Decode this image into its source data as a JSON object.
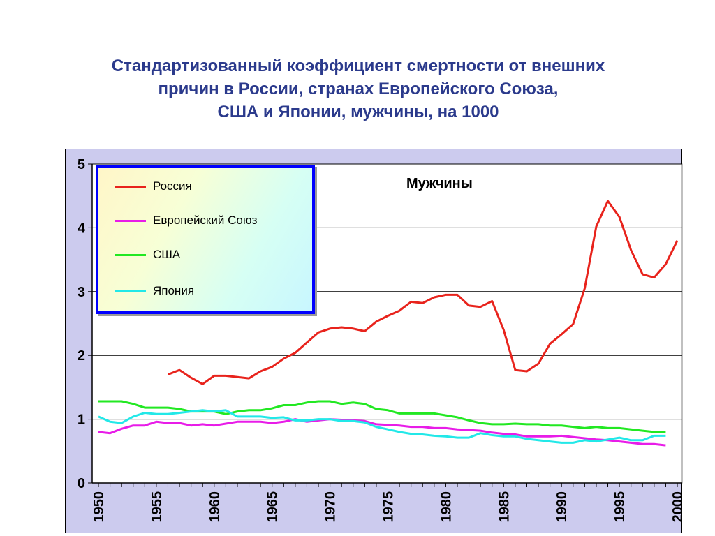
{
  "title_lines": [
    "Стандартизованный коэффициент смертности от внешних",
    "причин в России, странах Европейского Союза,",
    "США и Японии, мужчины, на 1000"
  ],
  "colors": {
    "title": "#2b3a8c",
    "plot_background": "#ffffff",
    "frame_background": "#cccbee",
    "legend_border": "#0000ff"
  },
  "chart_data": {
    "type": "line",
    "title": "Мужчины",
    "xlabel": "",
    "ylabel": "",
    "xlim": [
      1950,
      2000
    ],
    "ylim": [
      0,
      5
    ],
    "yticks": [
      "0",
      "1",
      "2",
      "3",
      "4",
      "5"
    ],
    "xticks": [
      "1950",
      "1955",
      "1960",
      "1965",
      "1970",
      "1975",
      "1980",
      "1985",
      "1990",
      "1995",
      "2000"
    ],
    "grid": "horizontal",
    "legend_position": "top-left",
    "series": [
      {
        "name": "Россия",
        "color": "#e8231c",
        "x": [
          1956,
          1957,
          1958,
          1959,
          1960,
          1961,
          1962,
          1963,
          1964,
          1965,
          1966,
          1967,
          1968,
          1969,
          1970,
          1971,
          1972,
          1973,
          1974,
          1975,
          1976,
          1977,
          1978,
          1979,
          1980,
          1981,
          1982,
          1983,
          1984,
          1985,
          1986,
          1987,
          1988,
          1989,
          1990,
          1991,
          1992,
          1993,
          1994,
          1995,
          1996,
          1997,
          1998,
          1999,
          2000
        ],
        "y": [
          1.7,
          1.77,
          1.65,
          1.55,
          1.68,
          1.68,
          1.66,
          1.64,
          1.75,
          1.82,
          1.95,
          2.04,
          2.2,
          2.36,
          2.42,
          2.44,
          2.42,
          2.38,
          2.53,
          2.62,
          2.7,
          2.84,
          2.82,
          2.91,
          2.95,
          2.95,
          2.78,
          2.76,
          2.85,
          2.4,
          1.77,
          1.75,
          1.87,
          2.18,
          2.33,
          2.49,
          3.05,
          4.02,
          4.42,
          4.17,
          3.65,
          3.27,
          3.22,
          3.43,
          3.8
        ]
      },
      {
        "name": "Европейский Союз",
        "color": "#e81ce8",
        "x": [
          1950,
          1951,
          1952,
          1953,
          1954,
          1955,
          1956,
          1957,
          1958,
          1959,
          1960,
          1961,
          1962,
          1963,
          1964,
          1965,
          1966,
          1967,
          1968,
          1969,
          1970,
          1971,
          1972,
          1973,
          1974,
          1975,
          1976,
          1977,
          1978,
          1979,
          1980,
          1981,
          1982,
          1983,
          1984,
          1985,
          1986,
          1987,
          1988,
          1989,
          1990,
          1991,
          1992,
          1993,
          1994,
          1995,
          1996,
          1997,
          1998,
          1999
        ],
        "y": [
          0.8,
          0.78,
          0.85,
          0.9,
          0.9,
          0.96,
          0.94,
          0.94,
          0.9,
          0.92,
          0.9,
          0.93,
          0.96,
          0.96,
          0.96,
          0.94,
          0.96,
          1.0,
          0.96,
          0.98,
          1.0,
          0.99,
          0.98,
          0.97,
          0.92,
          0.91,
          0.9,
          0.88,
          0.88,
          0.86,
          0.86,
          0.84,
          0.83,
          0.82,
          0.79,
          0.77,
          0.76,
          0.73,
          0.73,
          0.73,
          0.74,
          0.72,
          0.7,
          0.68,
          0.67,
          0.65,
          0.63,
          0.61,
          0.61,
          0.59
        ]
      },
      {
        "name": "США",
        "color": "#22e822",
        "x": [
          1950,
          1951,
          1952,
          1953,
          1954,
          1955,
          1956,
          1957,
          1958,
          1959,
          1960,
          1961,
          1962,
          1963,
          1964,
          1965,
          1966,
          1967,
          1968,
          1969,
          1970,
          1971,
          1972,
          1973,
          1974,
          1975,
          1976,
          1977,
          1978,
          1979,
          1980,
          1981,
          1982,
          1983,
          1984,
          1985,
          1986,
          1987,
          1988,
          1989,
          1990,
          1991,
          1992,
          1993,
          1994,
          1995,
          1996,
          1997,
          1998,
          1999
        ],
        "y": [
          1.28,
          1.28,
          1.28,
          1.24,
          1.18,
          1.18,
          1.18,
          1.16,
          1.12,
          1.12,
          1.12,
          1.08,
          1.12,
          1.14,
          1.14,
          1.17,
          1.22,
          1.22,
          1.26,
          1.28,
          1.28,
          1.24,
          1.26,
          1.24,
          1.16,
          1.14,
          1.09,
          1.09,
          1.09,
          1.09,
          1.06,
          1.03,
          0.98,
          0.94,
          0.92,
          0.92,
          0.93,
          0.92,
          0.92,
          0.9,
          0.9,
          0.88,
          0.86,
          0.88,
          0.86,
          0.86,
          0.84,
          0.82,
          0.8,
          0.8
        ]
      },
      {
        "name": "Япония",
        "color": "#22e8e8",
        "x": [
          1950,
          1951,
          1952,
          1953,
          1954,
          1955,
          1956,
          1957,
          1958,
          1959,
          1960,
          1961,
          1962,
          1963,
          1964,
          1965,
          1966,
          1967,
          1968,
          1969,
          1970,
          1971,
          1972,
          1973,
          1974,
          1975,
          1976,
          1977,
          1978,
          1979,
          1980,
          1981,
          1982,
          1983,
          1984,
          1985,
          1986,
          1987,
          1988,
          1989,
          1990,
          1991,
          1992,
          1993,
          1994,
          1995,
          1996,
          1997,
          1998,
          1999
        ],
        "y": [
          1.04,
          0.96,
          0.94,
          1.04,
          1.1,
          1.08,
          1.08,
          1.1,
          1.12,
          1.14,
          1.12,
          1.14,
          1.04,
          1.04,
          1.04,
          1.02,
          1.03,
          0.98,
          0.98,
          1.0,
          1.0,
          0.97,
          0.97,
          0.95,
          0.88,
          0.84,
          0.8,
          0.77,
          0.76,
          0.74,
          0.73,
          0.71,
          0.71,
          0.78,
          0.75,
          0.73,
          0.73,
          0.69,
          0.67,
          0.65,
          0.63,
          0.63,
          0.67,
          0.65,
          0.68,
          0.71,
          0.67,
          0.67,
          0.74,
          0.74
        ]
      }
    ]
  }
}
